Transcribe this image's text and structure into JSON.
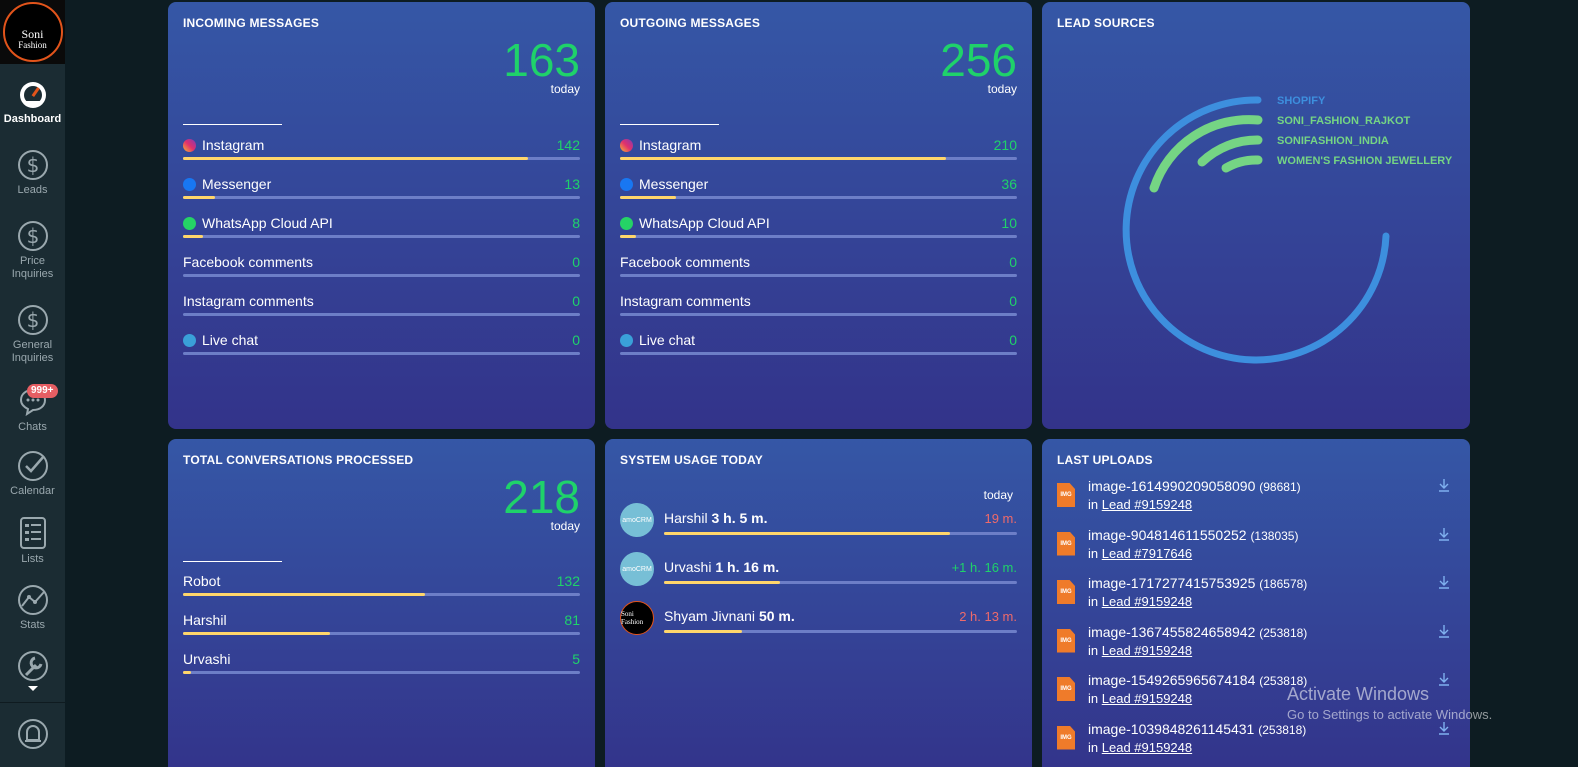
{
  "brand": {
    "line1": "Soni",
    "line2": "Fashion"
  },
  "sidebar": {
    "items": [
      {
        "label": "Dashboard",
        "icon": "speedometer-icon"
      },
      {
        "label": "Leads",
        "icon": "dollar-icon"
      },
      {
        "label": "Price Inquiries",
        "icon": "dollar-icon"
      },
      {
        "label": "General Inquiries",
        "icon": "dollar-icon"
      },
      {
        "label": "Chats",
        "icon": "chat-bubble-icon",
        "badge": "999+"
      },
      {
        "label": "Calendar",
        "icon": "checkmark-icon"
      },
      {
        "label": "Lists",
        "icon": "list-icon"
      },
      {
        "label": "Stats",
        "icon": "stats-icon"
      },
      {
        "label": "",
        "icon": "wrench-icon"
      },
      {
        "label": "",
        "icon": "bell-icon"
      }
    ]
  },
  "incoming": {
    "title": "INCOMING MESSAGES",
    "total": "163",
    "sub": "today",
    "rows": [
      {
        "label": "Instagram",
        "value": "142",
        "fraction": 0.87,
        "icon": "instagram-icon"
      },
      {
        "label": "Messenger",
        "value": "13",
        "fraction": 0.08,
        "icon": "messenger-icon"
      },
      {
        "label": "WhatsApp Cloud API",
        "value": "8",
        "fraction": 0.05,
        "icon": "whatsapp-icon"
      },
      {
        "label": "Facebook comments",
        "value": "0",
        "fraction": 0
      },
      {
        "label": "Instagram comments",
        "value": "0",
        "fraction": 0
      },
      {
        "label": "Live chat",
        "value": "0",
        "fraction": 0,
        "icon": "livechat-icon"
      }
    ]
  },
  "outgoing": {
    "title": "OUTGOING MESSAGES",
    "total": "256",
    "sub": "today",
    "rows": [
      {
        "label": "Instagram",
        "value": "210",
        "fraction": 0.82,
        "icon": "instagram-icon"
      },
      {
        "label": "Messenger",
        "value": "36",
        "fraction": 0.14,
        "icon": "messenger-icon"
      },
      {
        "label": "WhatsApp Cloud API",
        "value": "10",
        "fraction": 0.04,
        "icon": "whatsapp-icon"
      },
      {
        "label": "Facebook comments",
        "value": "0",
        "fraction": 0
      },
      {
        "label": "Instagram comments",
        "value": "0",
        "fraction": 0
      },
      {
        "label": "Live chat",
        "value": "0",
        "fraction": 0,
        "icon": "livechat-icon"
      }
    ]
  },
  "lead_sources": {
    "title": "LEAD SOURCES",
    "items": [
      {
        "label": "SHOPIFY",
        "color": "#3d8fde"
      },
      {
        "label": "SONI_FASHION_RAJKOT",
        "color": "#75d584"
      },
      {
        "label": "SONIFASHION_INDIA",
        "color": "#75d584"
      },
      {
        "label": "WOMEN'S FASHION JEWELLERY",
        "color": "#75d584"
      }
    ]
  },
  "conversations": {
    "title": "TOTAL CONVERSATIONS PROCESSED",
    "total": "218",
    "sub": "today",
    "rows": [
      {
        "label": "Robot",
        "value": "132",
        "fraction": 0.61
      },
      {
        "label": "Harshil",
        "value": "81",
        "fraction": 0.37
      },
      {
        "label": "Urvashi",
        "value": "5",
        "fraction": 0.02
      }
    ]
  },
  "usage": {
    "title": "SYSTEM USAGE TODAY",
    "sub": "today",
    "rows": [
      {
        "name": "Harshil",
        "time": "3 h. 5 m.",
        "delta": "19 m.",
        "delta_color": "#ef6a6a",
        "fraction": 0.81,
        "avatar": "amoCRM"
      },
      {
        "name": "Urvashi",
        "time": "1 h. 16 m.",
        "delta": "+1 h. 16 m.",
        "delta_color": "#1fd26a",
        "fraction": 0.33,
        "avatar": "amoCRM"
      },
      {
        "name": "Shyam Jivnani",
        "time": "50 m.",
        "delta": "2 h. 13 m.",
        "delta_color": "#ef6a6a",
        "fraction": 0.22,
        "avatar": "Soni Fashion"
      }
    ]
  },
  "uploads": {
    "title": "LAST UPLOADS",
    "file_badge": "IMG",
    "in_label": "in",
    "rows": [
      {
        "name": "image-1614990209058090",
        "size": "(98681)",
        "lead": "Lead #9159248"
      },
      {
        "name": "image-904814611550252",
        "size": "(138035)",
        "lead": "Lead #7917646"
      },
      {
        "name": "image-1717277415753925",
        "size": "(186578)",
        "lead": "Lead #9159248"
      },
      {
        "name": "image-1367455824658942",
        "size": "(253818)",
        "lead": "Lead #9159248"
      },
      {
        "name": "image-1549265965674184",
        "size": "(253818)",
        "lead": "Lead #9159248"
      },
      {
        "name": "image-1039848261145431",
        "size": "(253818)",
        "lead": "Lead #9159248"
      }
    ]
  },
  "watermark": {
    "line1": "Activate Windows",
    "line2": "Go to Settings to activate Windows."
  }
}
